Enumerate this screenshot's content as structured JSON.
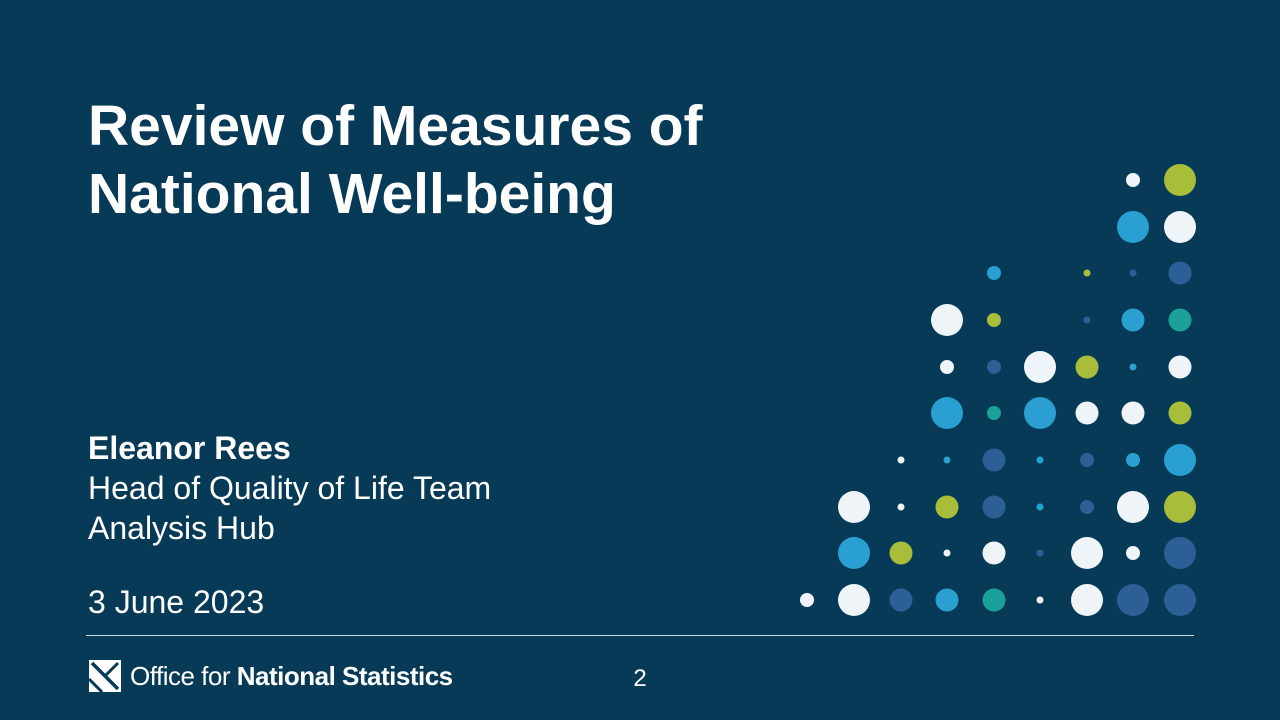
{
  "slide": {
    "title_lines": [
      "Review of Measures of",
      "National Well-being"
    ],
    "presenter": {
      "name": "Eleanor Rees",
      "role": "Head of Quality of Life Team",
      "department": "Analysis Hub"
    },
    "date": "3 June 2023",
    "page_number": "2"
  },
  "footer": {
    "logo_text_light": "Office for ",
    "logo_text_bold": "National Statistics",
    "logo_icon": "ons-logo-icon"
  },
  "colors": {
    "background": "#073a56",
    "white": "#eef4f8",
    "light_blue": "#2a9fd1",
    "green": "#a8bd3a",
    "teal": "#1aa19a",
    "navy": "#2c5f96"
  }
}
